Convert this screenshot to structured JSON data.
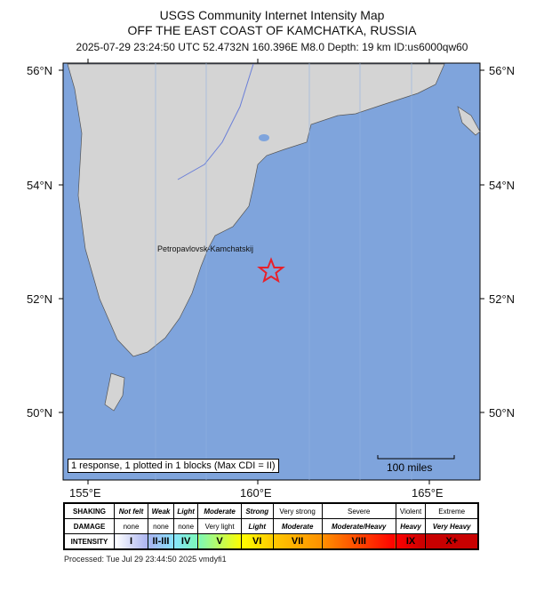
{
  "title": {
    "line1": "USGS Community Internet Intensity Map",
    "line2": "OFF THE EAST COAST OF KAMCHATKA, RUSSIA",
    "line3": "2025-07-29 23:24:50 UTC 52.4732N 160.396E M8.0 Depth: 19 km ID:us6000qw60"
  },
  "map": {
    "lat_labels": [
      "56°N",
      "54°N",
      "52°N",
      "50°N"
    ],
    "lon_labels": [
      "155°E",
      "160°E",
      "165°E"
    ],
    "city": "Petropavlovsk-Kamchatskij",
    "epicenter_icon": "star-icon",
    "epicenter_color": "#e8202a",
    "ocean_color": "#7fa4dc",
    "response_text": "1 response, 1 plotted in 1 blocks (Max CDI = II)",
    "scale_label": "100 miles"
  },
  "legend": {
    "shaking_label": "SHAKING",
    "damage_label": "DAMAGE",
    "intensity_label": "INTENSITY",
    "columns": [
      {
        "shaking": "Not felt",
        "damage": "none",
        "intensity": "I",
        "color": "#ffffff"
      },
      {
        "shaking": "Weak",
        "damage": "none",
        "intensity": "II-III",
        "color": "#aab4f0"
      },
      {
        "shaking": "Light",
        "damage": "none",
        "intensity": "IV",
        "color": "#88e4ff"
      },
      {
        "shaking": "Moderate",
        "damage": "Very light",
        "intensity": "V",
        "color": "#7cf8b8"
      },
      {
        "shaking": "Strong",
        "damage": "Light",
        "intensity": "VI",
        "color": "#ffff00"
      },
      {
        "shaking": "Very strong",
        "damage": "Moderate",
        "intensity": "VII",
        "color": "#ffc800"
      },
      {
        "shaking": "Severe",
        "damage": "Moderate/Heavy",
        "intensity": "VIII",
        "color": "#ff9100"
      },
      {
        "shaking": "Violent",
        "damage": "Heavy",
        "intensity": "IX",
        "color": "#ff0000"
      },
      {
        "shaking": "Extreme",
        "damage": "Very Heavy",
        "intensity": "X+",
        "color": "#c80000"
      }
    ]
  },
  "processed": "Processed: Tue Jul 29 23:44:50 2025 vmdyfi1"
}
